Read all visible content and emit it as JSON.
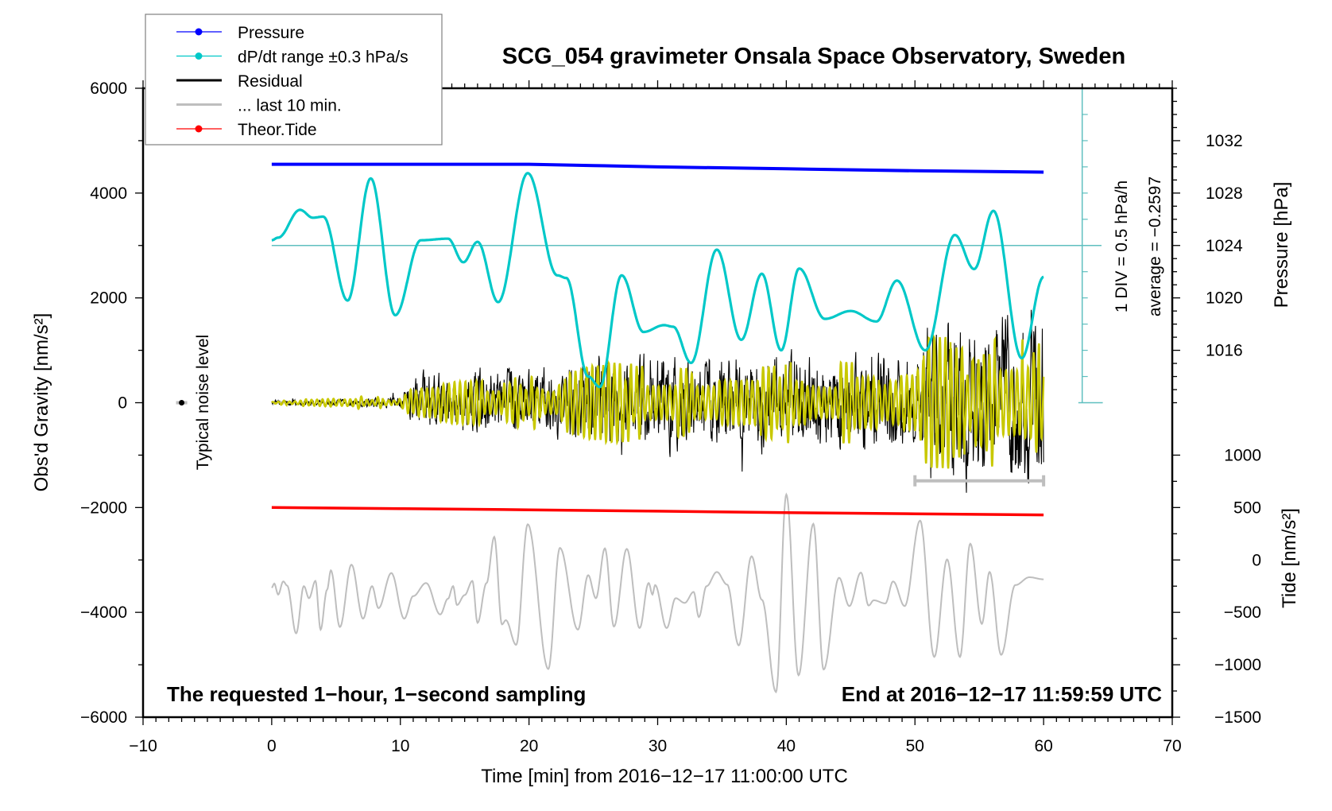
{
  "chart_data": {
    "type": "line",
    "title": "SCG_054 gravimeter Onsala Space Observatory, Sweden",
    "xlabel": "Time [min] from 2016−12−17 11:00:00 UTC",
    "ylabel_left": "Obs'd Gravity [nm/s²]",
    "ylabel_right_top": "Pressure [hPa]",
    "ylabel_right_bottom": "Tide [nm/s²]",
    "xlim": [
      -10,
      70
    ],
    "ylim": [
      -6000,
      6000
    ],
    "x_ticks": [
      -10,
      0,
      10,
      20,
      30,
      40,
      50,
      60,
      70
    ],
    "x_tick_labels": [
      "−10",
      "0",
      "10",
      "20",
      "30",
      "40",
      "50",
      "60",
      "70"
    ],
    "y_ticks": [
      -6000,
      -4000,
      -2000,
      0,
      2000,
      4000,
      6000
    ],
    "y_tick_labels": [
      "−6000",
      "−4000",
      "−2000",
      "0",
      "2000",
      "4000",
      "6000"
    ],
    "pressure_axis": {
      "ticks": [
        1016,
        1020,
        1024,
        1028,
        1032
      ],
      "range": [
        1012,
        1036
      ],
      "ref_hpa": 1024,
      "ref_gravity": 3000,
      "gravity_per_hpa": 250
    },
    "tide_axis": {
      "ticks": [
        -1500,
        -1000,
        -500,
        0,
        500,
        1000
      ],
      "tick_labels": [
        "−1500",
        "−1000",
        "−500",
        "0",
        "500",
        "1000"
      ],
      "ref_tide": 0,
      "ref_gravity": -3000,
      "gravity_per_tide": 2
    },
    "dpdt_scale": {
      "label": "1 DIV = 0.5 hPa/h",
      "average_label": "average = −0.2597",
      "axis_x": 63,
      "range_gravity": [
        0,
        6000
      ],
      "div_gravity": 500,
      "reference_gravity": 3000
    },
    "legend": {
      "placement": "top-left",
      "entries": [
        {
          "label": "Pressure",
          "color": "#0000ff",
          "marker": true
        },
        {
          "label": "dP/dt range ±0.3 hPa/s",
          "color": "#00c8c8",
          "marker": true
        },
        {
          "label": "Residual",
          "color": "#000000",
          "marker": false
        },
        {
          "label": "... last 10 min.",
          "color": "#bebebe",
          "marker": false
        },
        {
          "label": "Theor.Tide",
          "color": "#ff0000",
          "marker": true
        }
      ]
    },
    "annotations": {
      "noise_label": "Typical noise level",
      "noise_point": {
        "t": -7,
        "g": 0
      },
      "bottom_left": "The requested 1−hour, 1−second sampling",
      "bottom_right": "End at 2016−12−17 11:59:59 UTC",
      "last10_bar": {
        "t_start": 50,
        "t_end": 60,
        "g": -1490
      }
    },
    "series": [
      {
        "name": "Pressure",
        "unit": "hPa",
        "color": "#0000ff",
        "x": [
          0,
          10,
          20,
          25,
          30,
          40,
          50,
          60
        ],
        "values": [
          1030.2,
          1030.2,
          1030.2,
          1030.1,
          1030.0,
          1029.85,
          1029.7,
          1029.6
        ]
      },
      {
        "name": "Theor.Tide",
        "unit": "nm/s2",
        "color": "#ff0000",
        "x": [
          0,
          10,
          20,
          30,
          40,
          50,
          60
        ],
        "values": [
          500,
          490,
          478,
          465,
          452,
          440,
          430
        ]
      },
      {
        "name": "dP/dt",
        "unit": "gravity-axis",
        "color": "#00c8c8",
        "points": [
          [
            0,
            3100
          ],
          [
            0.5,
            3150
          ],
          [
            2.2,
            3680
          ],
          [
            3.2,
            3530
          ],
          [
            4,
            3550
          ],
          [
            5.9,
            1950
          ],
          [
            7.7,
            4280
          ],
          [
            9.6,
            1670
          ],
          [
            11.6,
            3100
          ],
          [
            13.7,
            3130
          ],
          [
            14.9,
            2680
          ],
          [
            16,
            3070
          ],
          [
            17.6,
            1920
          ],
          [
            19.9,
            4380
          ],
          [
            22.2,
            2430
          ],
          [
            22.9,
            2380
          ],
          [
            24.6,
            500
          ],
          [
            25.5,
            300
          ],
          [
            27.2,
            2430
          ],
          [
            28.9,
            1350
          ],
          [
            30.5,
            1480
          ],
          [
            31.2,
            1450
          ],
          [
            32.6,
            760
          ],
          [
            34.6,
            2920
          ],
          [
            36.5,
            1200
          ],
          [
            38.1,
            2460
          ],
          [
            39.6,
            1000
          ],
          [
            41,
            2560
          ],
          [
            43,
            1600
          ],
          [
            45,
            1750
          ],
          [
            47,
            1550
          ],
          [
            48.6,
            2330
          ],
          [
            50.8,
            1000
          ],
          [
            53.1,
            3200
          ],
          [
            54.6,
            2550
          ],
          [
            56.1,
            3660
          ],
          [
            58.3,
            850
          ],
          [
            60,
            2400
          ]
        ]
      },
      {
        "name": "Smoothed residual (gray)",
        "unit": "gravity-axis",
        "color": "#bebebe",
        "points": [
          [
            0,
            -3530
          ],
          [
            0.2,
            -3450
          ],
          [
            0.5,
            -3660
          ],
          [
            0.9,
            -3410
          ],
          [
            1.2,
            -3490
          ],
          [
            1.9,
            -4400
          ],
          [
            2.5,
            -3500
          ],
          [
            2.9,
            -3730
          ],
          [
            3.4,
            -3400
          ],
          [
            3.8,
            -4330
          ],
          [
            4.3,
            -3570
          ],
          [
            4.6,
            -3200
          ],
          [
            5.3,
            -4280
          ],
          [
            6.2,
            -3090
          ],
          [
            7.1,
            -4120
          ],
          [
            7.8,
            -3500
          ],
          [
            8.3,
            -3920
          ],
          [
            9.3,
            -3250
          ],
          [
            10.3,
            -4120
          ],
          [
            11.0,
            -3690
          ],
          [
            12,
            -3440
          ],
          [
            13.1,
            -4040
          ],
          [
            13.7,
            -3740
          ],
          [
            14.1,
            -3500
          ],
          [
            14.4,
            -3860
          ],
          [
            15.0,
            -3670
          ],
          [
            15.6,
            -3400
          ],
          [
            16.0,
            -4200
          ],
          [
            16.7,
            -3440
          ],
          [
            17.3,
            -2560
          ],
          [
            17.9,
            -4230
          ],
          [
            18.2,
            -4150
          ],
          [
            19.0,
            -4620
          ],
          [
            19.9,
            -2320
          ],
          [
            21.5,
            -5080
          ],
          [
            22.4,
            -2770
          ],
          [
            23.8,
            -4330
          ],
          [
            24.6,
            -3290
          ],
          [
            25.2,
            -3730
          ],
          [
            25.9,
            -2780
          ],
          [
            26.6,
            -4270
          ],
          [
            27.6,
            -2790
          ],
          [
            28.6,
            -4300
          ],
          [
            29.3,
            -3440
          ],
          [
            29.6,
            -3660
          ],
          [
            29.8,
            -3480
          ],
          [
            30.7,
            -4300
          ],
          [
            31.4,
            -3730
          ],
          [
            32.1,
            -3820
          ],
          [
            32.8,
            -3610
          ],
          [
            33.2,
            -4090
          ],
          [
            33.8,
            -3500
          ],
          [
            34.6,
            -3230
          ],
          [
            35.4,
            -3470
          ],
          [
            36.3,
            -4630
          ],
          [
            37.3,
            -2930
          ],
          [
            38.1,
            -3760
          ],
          [
            39.2,
            -5520
          ],
          [
            40.0,
            -1750
          ],
          [
            40.95,
            -5200
          ],
          [
            42.1,
            -2310
          ],
          [
            42.9,
            -5090
          ],
          [
            44.1,
            -3340
          ],
          [
            44.9,
            -3880
          ],
          [
            45.8,
            -3240
          ],
          [
            46.4,
            -3870
          ],
          [
            46.8,
            -3770
          ],
          [
            47.7,
            -3830
          ],
          [
            48.3,
            -3410
          ],
          [
            49.2,
            -3880
          ],
          [
            50.4,
            -2250
          ],
          [
            51.5,
            -4850
          ],
          [
            52.5,
            -2990
          ],
          [
            53.5,
            -4850
          ],
          [
            54.3,
            -2690
          ],
          [
            55.2,
            -4220
          ],
          [
            55.8,
            -3230
          ],
          [
            56.7,
            -4810
          ],
          [
            57.8,
            -3480
          ],
          [
            58.9,
            -3330
          ],
          [
            60,
            -3370
          ]
        ]
      },
      {
        "name": "Residual",
        "unit": "nm/s2",
        "color": "#000000",
        "seed": 7,
        "envelope": [
          [
            0,
            60
          ],
          [
            4,
            70
          ],
          [
            10,
            120
          ],
          [
            11.5,
            600
          ],
          [
            22,
            750
          ],
          [
            25,
            1000
          ],
          [
            50,
            1050
          ],
          [
            51,
            1700
          ],
          [
            60,
            1900
          ]
        ]
      },
      {
        "name": "Residual filtered (yellow)",
        "unit": "nm/s2",
        "color": "#c8c800",
        "seed": 11,
        "envelope": [
          [
            0,
            30
          ],
          [
            7,
            150
          ],
          [
            10,
            80
          ],
          [
            11.5,
            450
          ],
          [
            22,
            550
          ],
          [
            25,
            800
          ],
          [
            50,
            800
          ],
          [
            51,
            1500
          ],
          [
            60,
            1600
          ]
        ]
      }
    ]
  }
}
